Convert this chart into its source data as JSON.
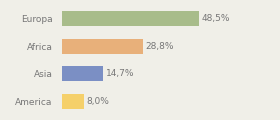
{
  "categories": [
    "Europa",
    "Africa",
    "Asia",
    "America"
  ],
  "values": [
    48.5,
    28.8,
    14.7,
    8.0
  ],
  "labels": [
    "48,5%",
    "28,8%",
    "14,7%",
    "8,0%"
  ],
  "bar_colors": [
    "#a8bc8a",
    "#e8b07a",
    "#7b8fc4",
    "#f5d06a"
  ],
  "background_color": "#f0efe8",
  "text_color": "#777777",
  "label_fontsize": 6.5,
  "tick_fontsize": 6.5,
  "bar_height": 0.55,
  "xlim": [
    0,
    65
  ]
}
